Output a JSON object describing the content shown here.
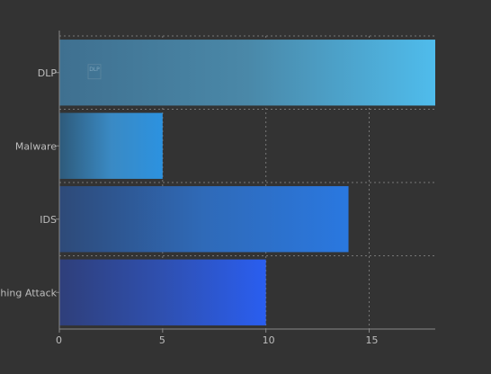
{
  "chart_data": {
    "type": "bar",
    "orientation": "horizontal",
    "categories": [
      "DLP",
      "Malware",
      "IDS",
      "Phishing Attack"
    ],
    "values": [
      18.2,
      5,
      14,
      10
    ],
    "xlim": [
      0,
      18.2
    ],
    "xticks": [
      0,
      5,
      10,
      15
    ],
    "xlabel": "",
    "ylabel": "",
    "title": "",
    "grid": true,
    "inline_label": "DLP",
    "colors": {
      "background": "#333333",
      "axis": "#888888",
      "grid": "#777777",
      "tick_text": "#bdbdbd",
      "bar_gradients": [
        [
          "#3f7090",
          "#4a88a8",
          "#4fbcec"
        ],
        [
          "#2e5a7a",
          "#3a8ac4",
          "#2c92e0"
        ],
        [
          "#2e4a78",
          "#2f6ab8",
          "#2a78e0"
        ],
        [
          "#2f3f7a",
          "#2f50b0",
          "#2a5ef0"
        ]
      ]
    }
  }
}
